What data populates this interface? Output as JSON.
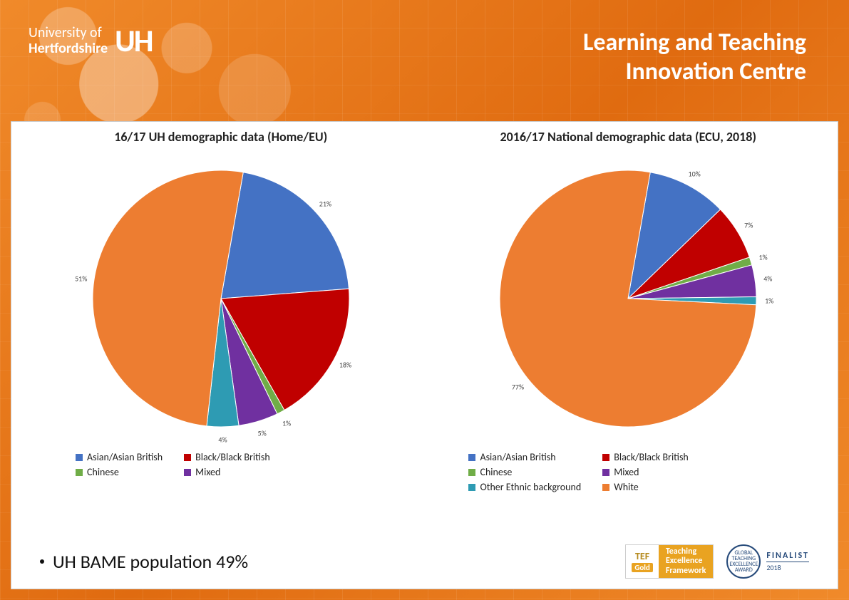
{
  "header": {
    "logo_line1": "University of",
    "logo_line2": "Hertfordshire",
    "logo_mark": "UH",
    "title_line1": "Learning and Teaching",
    "title_line2": "Innovation Centre"
  },
  "colors": {
    "asian": "#4472c4",
    "black": "#c00000",
    "chinese": "#70ad47",
    "mixed": "#7030a0",
    "other": "#2e9bb3",
    "white": "#ed7d31"
  },
  "chart1": {
    "title": "16/17 UH demographic data (Home/EU)",
    "type": "pie",
    "radius": 180,
    "start_angle_deg": -80,
    "slices": [
      {
        "key": "asian",
        "label": "Asian/Asian British",
        "value": 21,
        "display": "21%",
        "color": "#4472c4"
      },
      {
        "key": "black",
        "label": "Black/Black British",
        "value": 18,
        "display": "18%",
        "color": "#c00000"
      },
      {
        "key": "chinese",
        "label": "Chinese",
        "value": 1,
        "display": "1%",
        "color": "#70ad47"
      },
      {
        "key": "mixed",
        "label": "Mixed",
        "value": 5,
        "display": "5%",
        "color": "#7030a0"
      },
      {
        "key": "other",
        "label": "Other Ethnic background",
        "value": 4,
        "display": "4%",
        "color": "#2e9bb3"
      },
      {
        "key": "white",
        "label": "White",
        "value": 51,
        "display": "51%",
        "color": "#ed7d31"
      }
    ],
    "legend": [
      {
        "key": "asian",
        "label": "Asian/Asian British"
      },
      {
        "key": "black",
        "label": "Black/Black British"
      },
      {
        "key": "chinese",
        "label": "Chinese"
      },
      {
        "key": "mixed",
        "label": "Mixed"
      }
    ]
  },
  "chart2": {
    "title": "2016/17 National demographic data (ECU, 2018)",
    "type": "pie",
    "radius": 180,
    "start_angle_deg": -80,
    "slices": [
      {
        "key": "asian",
        "label": "Asian/Asian British",
        "value": 10,
        "display": "10%",
        "color": "#4472c4"
      },
      {
        "key": "black",
        "label": "Black/Black British",
        "value": 7,
        "display": "7%",
        "color": "#c00000"
      },
      {
        "key": "chinese",
        "label": "Chinese",
        "value": 1,
        "display": "1%",
        "color": "#70ad47"
      },
      {
        "key": "mixed",
        "label": "Mixed",
        "value": 4,
        "display": "4%",
        "color": "#7030a0"
      },
      {
        "key": "other",
        "label": "Other Ethnic background",
        "value": 1,
        "display": "1%",
        "color": "#2e9bb3"
      },
      {
        "key": "white",
        "label": "White",
        "value": 77,
        "display": "77%",
        "color": "#ed7d31"
      }
    ],
    "legend": [
      {
        "key": "asian",
        "label": "Asian/Asian British"
      },
      {
        "key": "black",
        "label": "Black/Black British"
      },
      {
        "key": "chinese",
        "label": "Chinese"
      },
      {
        "key": "mixed",
        "label": "Mixed"
      },
      {
        "key": "other",
        "label": "Other Ethnic background"
      },
      {
        "key": "white",
        "label": "White"
      }
    ]
  },
  "bullet": "UH BAME population 49%",
  "footer": {
    "tef_label": "TEF",
    "tef_rating": "Gold",
    "tef_line1": "Teaching",
    "tef_line2": "Excellence",
    "tef_line3": "Framework",
    "award_inner": "GLOBAL TEACHING EXCELLENCE AWARD",
    "award_finalist": "FINALIST",
    "award_year": "2018"
  }
}
